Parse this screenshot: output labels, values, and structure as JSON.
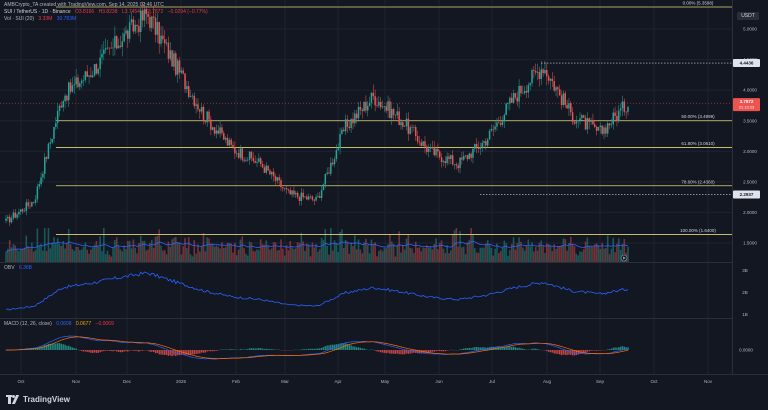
{
  "header": {
    "attribution": "AMBCrypto_TA created with TradingView.com, Sep 14, 2025 02:46 UTC",
    "symbol": "SUI / TetherUS · 1D · Binance",
    "ohlc_o": "O3.8166",
    "ohlc_h": "H3.8238",
    "ohlc_l": "L3.7454",
    "ohlc_c": "C3.7872",
    "change": "−0.0294 (−0.77%)",
    "vol_label": "Vol · SUI (20)",
    "vol_value": "3.33M",
    "vol_ma": "30.783M",
    "currency": "USDT"
  },
  "price_axis": {
    "ticks": [
      "5.0000",
      "4.5000",
      "4.0000",
      "3.5000",
      "3.0000",
      "2.5000",
      "2.0000",
      "1.5000"
    ],
    "current_price": "3.7872",
    "countdown": "21:13:23",
    "high_label": "4.4436",
    "low_label": "2.2937"
  },
  "fib_levels": [
    {
      "label": "0.00% (5.3598)",
      "price": 5.3598
    },
    {
      "label": "50.00% (3.4999)",
      "price": 3.4999
    },
    {
      "label": "61.80% (3.0610)",
      "price": 3.061
    },
    {
      "label": "78.60% (2.4360)",
      "price": 2.436
    },
    {
      "label": "100.00% (1.6400)",
      "price": 1.64
    }
  ],
  "obv": {
    "label": "OBV",
    "value": "6.36B",
    "ticks": [
      "3B",
      "2B",
      "1B"
    ]
  },
  "macd": {
    "label": "MACD (12, 26, close)",
    "v1": "0.0608",
    "v2": "0.0677",
    "v3": "−0.0069",
    "tick": "0.0000"
  },
  "time_axis": [
    "Oct",
    "Nov",
    "Dec",
    "2025",
    "Feb",
    "Mar",
    "Apr",
    "May",
    "Jun",
    "Jul",
    "Aug",
    "Sep",
    "Oct",
    "Nov"
  ],
  "brand": "TradingView",
  "colors": {
    "up": "#26a69a",
    "down": "#ef5350",
    "fib": "#e0d575",
    "obv": "#2962ff",
    "macd_signal": "#ff6d00"
  },
  "chart_data": {
    "type": "candlestick",
    "symbol": "SUI / TetherUS",
    "timeframe": "1D",
    "price_range": [
      1.5,
      5.3
    ],
    "monthly_path": [
      {
        "month": "Oct",
        "price": 1.85
      },
      {
        "month": "Nov",
        "price": 2.2
      },
      {
        "month": "Nov",
        "price": 3.9
      },
      {
        "month": "Dec",
        "price": 4.3
      },
      {
        "month": "Dec",
        "price": 4.8
      },
      {
        "month": "2025",
        "price": 5.25
      },
      {
        "month": "2025",
        "price": 4.4
      },
      {
        "month": "Feb",
        "price": 3.6
      },
      {
        "month": "Feb",
        "price": 3.05
      },
      {
        "month": "Mar",
        "price": 2.8
      },
      {
        "month": "Mar",
        "price": 2.3
      },
      {
        "month": "Apr",
        "price": 2.2
      },
      {
        "month": "Apr",
        "price": 3.4
      },
      {
        "month": "May",
        "price": 3.9
      },
      {
        "month": "May",
        "price": 3.5
      },
      {
        "month": "Jun",
        "price": 3.0
      },
      {
        "month": "Jun",
        "price": 2.8
      },
      {
        "month": "Jul",
        "price": 3.2
      },
      {
        "month": "Jul",
        "price": 3.9
      },
      {
        "month": "Aug",
        "price": 4.4
      },
      {
        "month": "Aug",
        "price": 3.6
      },
      {
        "month": "Sep",
        "price": 3.3
      },
      {
        "month": "Sep",
        "price": 3.79
      }
    ]
  }
}
